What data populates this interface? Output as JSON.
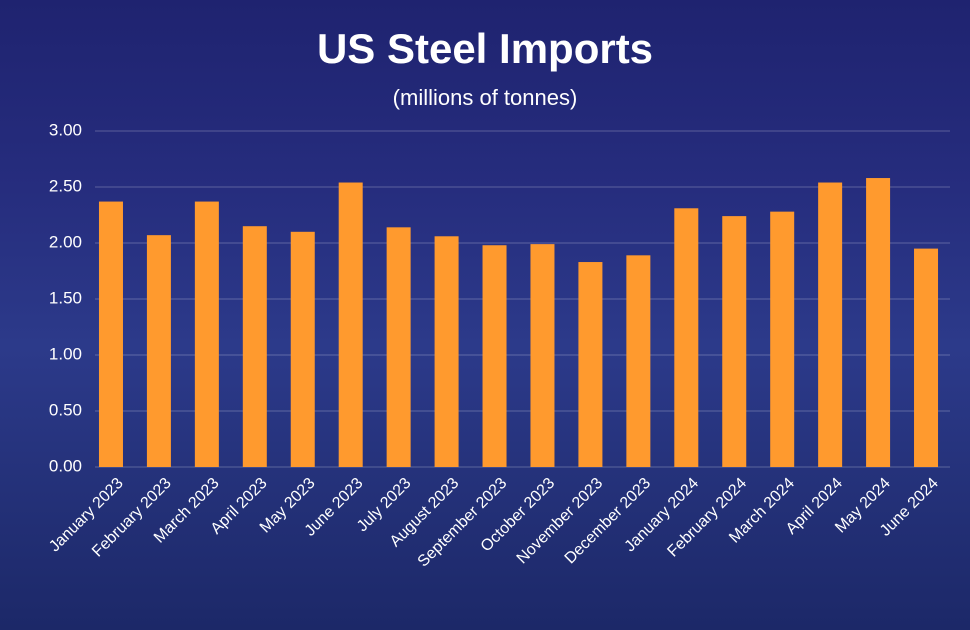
{
  "chart_data": {
    "type": "bar",
    "title": "US Steel Imports",
    "subtitle": "(millions of tonnes)",
    "categories": [
      "January 2023",
      "February 2023",
      "March 2023",
      "April 2023",
      "May 2023",
      "June 2023",
      "July 2023",
      "August 2023",
      "September 2023",
      "October 2023",
      "November 2023",
      "December 2023",
      "January 2024",
      "February 2024",
      "March 2024",
      "April 2024",
      "May 2024",
      "June 2024"
    ],
    "values": [
      2.37,
      2.07,
      2.37,
      2.15,
      2.1,
      2.54,
      2.14,
      2.06,
      1.98,
      1.99,
      1.83,
      1.89,
      2.31,
      2.24,
      2.28,
      2.54,
      2.58,
      1.95
    ],
    "color": "#ff9a2e",
    "ylim": [
      0,
      3
    ],
    "yticks": [
      {
        "value": 0,
        "label": "0.00"
      },
      {
        "value": 0.5,
        "label": "0.50"
      },
      {
        "value": 1,
        "label": "1.00"
      },
      {
        "value": 1.5,
        "label": "1.50"
      },
      {
        "value": 2,
        "label": "2.00"
      },
      {
        "value": 2.5,
        "label": "2.50"
      },
      {
        "value": 3,
        "label": "3.00"
      }
    ],
    "grid": true
  }
}
